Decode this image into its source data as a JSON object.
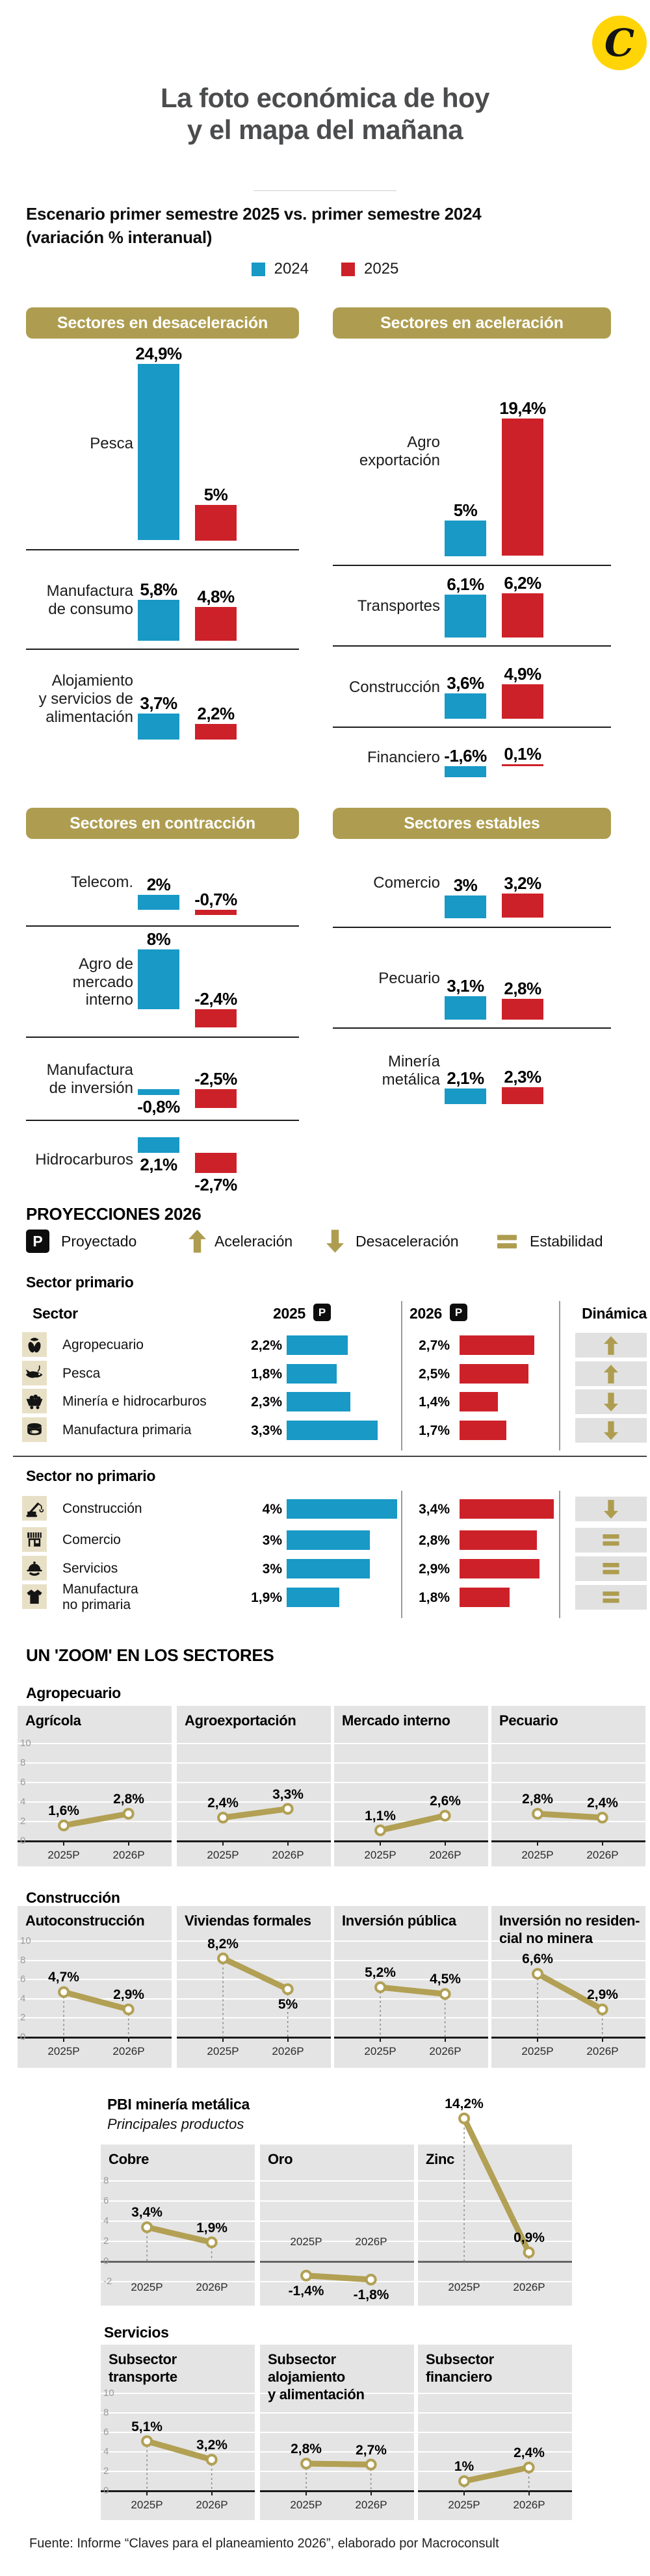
{
  "header": {
    "logo_letter": "C",
    "title": [
      "La foto económica de hoy",
      "y el mapa del mañana"
    ],
    "subtitle": [
      "Escenario primer semestre 2025 vs. primer semestre 2024",
      "(variación % interanual)"
    ],
    "legend": [
      {
        "label": "2024",
        "color": "#1899c6"
      },
      {
        "label": "2025",
        "color": "#cd2129"
      }
    ]
  },
  "colors": {
    "blue": "#1899c6",
    "red": "#cd2129",
    "gold": "#ae9d50",
    "line_gold": "#b2a054",
    "beige": "#e8e0c6",
    "panel_gray": "#e4e4e4",
    "dyn_gray": "#e1e1e1",
    "title_gray": "#4b4c4e"
  },
  "chart_data": {
    "semester_panels": {
      "type": "bar",
      "unit": "variación % interanual",
      "series": [
        "2024",
        "2025"
      ],
      "panels": [
        {
          "title": "Sectores en desaceleración",
          "rows": [
            {
              "label": "Pesca",
              "v2024": 24.9,
              "v2025": 5,
              "d2024": "24,9%",
              "d2025": "5%"
            },
            {
              "label": "Manufactura\nde consumo",
              "v2024": 5.8,
              "v2025": 4.8,
              "d2024": "5,8%",
              "d2025": "4,8%"
            },
            {
              "label": "Alojamiento\ny servicios de\nalimentación",
              "v2024": 3.7,
              "v2025": 2.2,
              "d2024": "3,7%",
              "d2025": "2,2%"
            }
          ]
        },
        {
          "title": "Sectores en aceleración",
          "rows": [
            {
              "label": "Agro\nexportación",
              "v2024": 5,
              "v2025": 19.4,
              "d2024": "5%",
              "d2025": "19,4%"
            },
            {
              "label": "Transportes",
              "v2024": 6.1,
              "v2025": 6.2,
              "d2024": "6,1%",
              "d2025": "6,2%"
            },
            {
              "label": "Construcción",
              "v2024": 3.6,
              "v2025": 4.9,
              "d2024": "3,6%",
              "d2025": "4,9%"
            },
            {
              "label": "Financiero",
              "v2024": -1.6,
              "v2025": 0.1,
              "d2024": "-1,6%",
              "d2025": "0,1%"
            }
          ]
        },
        {
          "title": "Sectores en contracción",
          "rows": [
            {
              "label": "Telecom.",
              "v2024": 2,
              "v2025": -0.7,
              "d2024": "2%",
              "d2025": "-0,7%"
            },
            {
              "label": "Agro de\nmercado\ninterno",
              "v2024": 8,
              "v2025": -2.4,
              "d2024": "8%",
              "d2025": "-2,4%"
            },
            {
              "label": "Manufactura\nde inversión",
              "v2024": -0.8,
              "v2025": -2.5,
              "d2024": "-0,8%",
              "d2025": "-2,5%"
            },
            {
              "label": "Hidrocarburos",
              "v2024": 2.1,
              "v2025": -2.7,
              "d2024": "2,1%",
              "d2025": "-2,7%"
            }
          ]
        },
        {
          "title": "Sectores estables",
          "rows": [
            {
              "label": "Comercio",
              "v2024": 3,
              "v2025": 3.2,
              "d2024": "3%",
              "d2025": "3,2%"
            },
            {
              "label": "Pecuario",
              "v2024": 3.1,
              "v2025": 2.8,
              "d2024": "3,1%",
              "d2025": "2,8%"
            },
            {
              "label": "Minería\nmetálica",
              "v2024": 2.1,
              "v2025": 2.3,
              "d2024": "2,1%",
              "d2025": "2,3%"
            }
          ]
        }
      ]
    },
    "projections": {
      "type": "bar",
      "series": [
        "2025P",
        "2026P"
      ],
      "sections": [
        {
          "title": "Sector primario",
          "rows": [
            {
              "sector": "Agropecuario",
              "icon": "corn-icon",
              "v2025": 2.2,
              "v2026": 2.7,
              "d2025": "2,2%",
              "d2026": "2,7%",
              "dynamic": "up"
            },
            {
              "sector": "Pesca",
              "icon": "fish-icon",
              "v2025": 1.8,
              "v2026": 2.5,
              "d2025": "1,8%",
              "d2026": "2,5%",
              "dynamic": "up"
            },
            {
              "sector": "Minería e hidrocarburos",
              "icon": "minecart-icon",
              "v2025": 2.3,
              "v2026": 1.4,
              "d2025": "2,3%",
              "d2026": "1,4%",
              "dynamic": "down"
            },
            {
              "sector": "Manufactura primaria",
              "icon": "can-icon",
              "v2025": 3.3,
              "v2026": 1.7,
              "d2025": "3,3%",
              "d2026": "1,7%",
              "dynamic": "down"
            }
          ]
        },
        {
          "title": "Sector no primario",
          "rows": [
            {
              "sector": "Construcción",
              "icon": "crane-icon",
              "v2025": 4,
              "v2026": 3.4,
              "d2025": "4%",
              "d2026": "3,4%",
              "dynamic": "down"
            },
            {
              "sector": "Comercio",
              "icon": "store-icon",
              "v2025": 3,
              "v2026": 2.8,
              "d2025": "3%",
              "d2026": "2,8%",
              "dynamic": "equal"
            },
            {
              "sector": "Servicios",
              "icon": "cloche-icon",
              "v2025": 3,
              "v2026": 2.9,
              "d2025": "3%",
              "d2026": "2,9%",
              "dynamic": "equal"
            },
            {
              "sector": "Manufactura\nno primaria",
              "icon": "shirt-icon",
              "v2025": 1.9,
              "v2026": 1.8,
              "d2025": "1,9%",
              "d2026": "1,8%",
              "dynamic": "equal"
            }
          ]
        }
      ]
    },
    "slope_groups": [
      {
        "heading": "Agropecuario",
        "ylim": [
          0,
          10
        ],
        "x": [
          "2025P",
          "2026P"
        ],
        "panels": [
          {
            "title": "Agrícola",
            "values": [
              1.6,
              2.8
            ],
            "labels": [
              "1,6%",
              "2,8%"
            ]
          },
          {
            "title": "Agroexportación",
            "values": [
              2.4,
              3.3
            ],
            "labels": [
              "2,4%",
              "3,3%"
            ]
          },
          {
            "title": "Mercado interno",
            "values": [
              1.1,
              2.6
            ],
            "labels": [
              "1,1%",
              "2,6%"
            ]
          },
          {
            "title": "Pecuario",
            "values": [
              2.8,
              2.4
            ],
            "labels": [
              "2,8%",
              "2,4%"
            ]
          }
        ]
      },
      {
        "heading": "Construcción",
        "ylim": [
          0,
          10
        ],
        "x": [
          "2025P",
          "2026P"
        ],
        "panels": [
          {
            "title": "Autoconstrucción",
            "values": [
              4.7,
              2.9
            ],
            "labels": [
              "4,7%",
              "2,9%"
            ]
          },
          {
            "title": "Viviendas formales",
            "values": [
              8.2,
              5
            ],
            "labels": [
              "8,2%",
              "5%"
            ]
          },
          {
            "title": "Inversión pública",
            "values": [
              5.2,
              4.5
            ],
            "labels": [
              "5,2%",
              "4,5%"
            ]
          },
          {
            "title": "Inversión no residen-\ncial no minera",
            "values": [
              6.6,
              2.9
            ],
            "labels": [
              "6,6%",
              "2,9%"
            ]
          }
        ]
      },
      {
        "heading": "PBI minería metálica",
        "subheading": "Principales productos",
        "ylim": [
          -2,
          8
        ],
        "x": [
          "2025P",
          "2026P"
        ],
        "panels": [
          {
            "title": "Cobre",
            "values": [
              3.4,
              1.9
            ],
            "labels": [
              "3,4%",
              "1,9%"
            ]
          },
          {
            "title": "Oro",
            "values": [
              -1.4,
              -1.8
            ],
            "labels": [
              "-1,4%",
              "-1,8%"
            ]
          },
          {
            "title": "Zinc",
            "values": [
              14.2,
              0.9
            ],
            "labels": [
              "14,2%",
              "0,9%"
            ]
          }
        ]
      },
      {
        "heading": "Servicios",
        "ylim": [
          0,
          10
        ],
        "x": [
          "2025P",
          "2026P"
        ],
        "panels": [
          {
            "title": "Subsector\ntransporte",
            "values": [
              5.1,
              3.2
            ],
            "labels": [
              "5,1%",
              "3,2%"
            ]
          },
          {
            "title": "Subsector\nalojamiento\ny alimentación",
            "values": [
              2.8,
              2.7
            ],
            "labels": [
              "2,8%",
              "2,7%"
            ]
          },
          {
            "title": "Subsector\nfinanciero",
            "values": [
              1,
              2.4
            ],
            "labels": [
              "1%",
              "2,4%"
            ]
          }
        ]
      }
    ]
  },
  "projections_block": {
    "heading": "PROYECCIONES 2026",
    "legend": [
      {
        "icon": "p-badge-icon",
        "label": "Proyectado"
      },
      {
        "icon": "arrow-up-icon",
        "label": "Aceleración"
      },
      {
        "icon": "arrow-down-icon",
        "label": "Desaceleración"
      },
      {
        "icon": "equals-icon",
        "label": "Estabilidad"
      }
    ],
    "table_header": {
      "sector": "Sector",
      "c2025": "2025",
      "c2026": "2026",
      "dynamic": "Dinámica"
    },
    "p_letter": "P"
  },
  "zoom_heading": "UN 'ZOOM' EN LOS SECTORES",
  "footer": {
    "source": "Fuente:  Informe “Claves para el planeamiento 2026”, elaborado por Macroconsult"
  }
}
